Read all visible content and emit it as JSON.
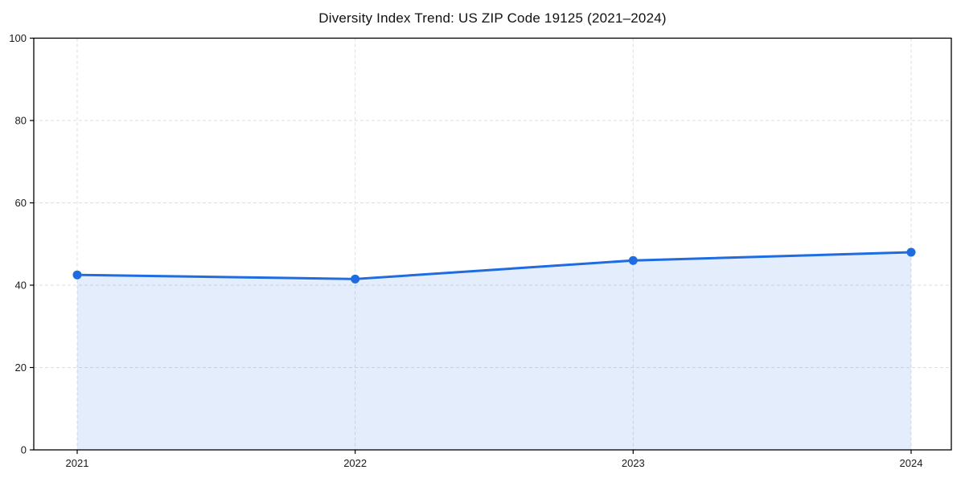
{
  "chart_data": {
    "type": "area",
    "title": "Diversity Index Trend: US ZIP Code 19125 (2021–2024)",
    "series_name": "Diversity Index",
    "x": [
      2021,
      2022,
      2023,
      2024
    ],
    "xtick_labels": [
      "2021",
      "2022",
      "2023",
      "2024"
    ],
    "values": [
      42.5,
      41.5,
      46,
      48
    ],
    "ylim": [
      0,
      100
    ],
    "yticks": [
      0,
      20,
      40,
      60,
      80,
      100
    ],
    "ytick_labels": [
      "0",
      "20",
      "40",
      "60",
      "80",
      "100"
    ],
    "xlabel": "",
    "ylabel": "",
    "grid": "dashed",
    "legend": "none",
    "marker": "circle",
    "colors": {
      "line": "#1f6ce0",
      "marker": "#1f6ce0",
      "fill_rgba": "rgba(31,108,224,0.12)",
      "grid": "#dedede",
      "spine": "#000000",
      "tick_label": "#1a1a1a",
      "background": "#ffffff"
    }
  }
}
